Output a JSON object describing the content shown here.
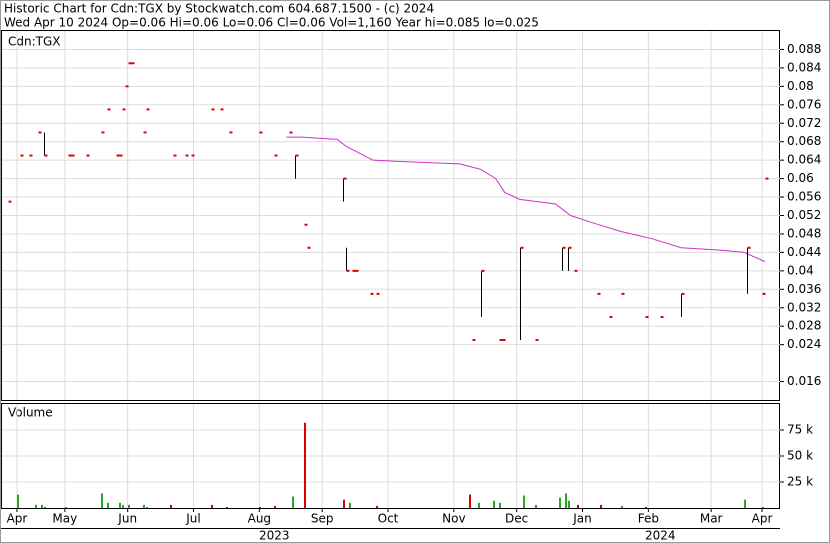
{
  "chart_data": [
    {
      "type": "ohlc",
      "title": "Historic Chart for Cdn:TGX by Stockwatch.com 604.687.1500 - (c) 2024",
      "subtitle": "Wed Apr 10 2024  Op=0.06  Hi=0.06  Lo=0.06  Cl=0.06  Vol=1,160  Year hi=0.085  lo=0.025",
      "label": "Cdn:TGX",
      "xlim": [
        0,
        260
      ],
      "ylim": [
        0.012,
        0.092
      ],
      "yticks": [
        0.016,
        0.024,
        0.028,
        0.032,
        0.036,
        0.04,
        0.044,
        0.048,
        0.052,
        0.056,
        0.06,
        0.064,
        0.068,
        0.072,
        0.076,
        0.08,
        0.084,
        0.088
      ],
      "grid": true,
      "x": [
        2,
        6,
        9,
        12,
        14,
        22,
        23,
        28,
        33,
        35,
        38,
        39,
        40,
        41,
        42,
        43,
        47,
        48,
        57,
        61,
        63,
        70,
        73,
        76,
        86,
        91,
        96,
        98,
        101,
        102,
        114,
        115,
        117,
        118,
        123,
        125,
        157,
        160,
        166,
        167,
        173,
        178,
        187,
        189,
        191,
        199,
        203,
        207,
        215,
        220,
        227,
        249,
        254,
        255
      ],
      "high": [
        0.055,
        0.065,
        0.065,
        0.07,
        0.07,
        0.065,
        0.065,
        0.065,
        0.07,
        0.075,
        0.065,
        0.065,
        0.075,
        0.08,
        0.085,
        0.085,
        0.07,
        0.075,
        0.065,
        0.065,
        0.065,
        0.075,
        0.075,
        0.07,
        0.07,
        0.065,
        0.07,
        0.065,
        0.05,
        0.045,
        0.06,
        0.045,
        0.04,
        0.04,
        0.035,
        0.035,
        0.025,
        0.04,
        0.025,
        0.025,
        0.045,
        0.025,
        0.045,
        0.045,
        0.04,
        0.035,
        0.03,
        0.035,
        0.03,
        0.03,
        0.035,
        0.045,
        0.035,
        0.06
      ],
      "low": [
        0.055,
        0.065,
        0.065,
        0.07,
        0.065,
        0.065,
        0.065,
        0.065,
        0.07,
        0.075,
        0.065,
        0.065,
        0.075,
        0.08,
        0.085,
        0.085,
        0.07,
        0.075,
        0.065,
        0.065,
        0.065,
        0.075,
        0.075,
        0.07,
        0.07,
        0.065,
        0.07,
        0.06,
        0.05,
        0.045,
        0.055,
        0.04,
        0.04,
        0.04,
        0.035,
        0.035,
        0.025,
        0.03,
        0.025,
        0.025,
        0.025,
        0.025,
        0.04,
        0.04,
        0.04,
        0.035,
        0.03,
        0.035,
        0.03,
        0.03,
        0.03,
        0.035,
        0.035,
        0.06
      ],
      "close": [
        0.055,
        0.065,
        0.065,
        0.07,
        0.065,
        0.065,
        0.065,
        0.065,
        0.07,
        0.075,
        0.065,
        0.065,
        0.075,
        0.08,
        0.085,
        0.085,
        0.07,
        0.075,
        0.065,
        0.065,
        0.065,
        0.075,
        0.075,
        0.07,
        0.07,
        0.065,
        0.07,
        0.065,
        0.05,
        0.045,
        0.06,
        0.04,
        0.04,
        0.04,
        0.035,
        0.035,
        0.025,
        0.04,
        0.025,
        0.025,
        0.045,
        0.025,
        0.045,
        0.045,
        0.04,
        0.035,
        0.03,
        0.035,
        0.03,
        0.03,
        0.035,
        0.045,
        0.035,
        0.06
      ],
      "bar_color": "#000000",
      "close_color": "#dd0000",
      "average": {
        "color": "#cc33cc",
        "x": [
          95,
          100,
          112,
          115,
          118,
          124,
          133,
          153,
          160,
          165,
          168,
          173,
          185,
          190,
          197,
          207,
          217,
          227,
          240,
          248,
          255
        ],
        "values": [
          0.069,
          0.069,
          0.0685,
          0.067,
          0.066,
          0.064,
          0.0637,
          0.0632,
          0.062,
          0.06,
          0.057,
          0.0555,
          0.0545,
          0.052,
          0.0505,
          0.0485,
          0.047,
          0.045,
          0.0445,
          0.044,
          0.042
        ]
      }
    },
    {
      "type": "bar",
      "label": "Volume",
      "xlim": [
        0,
        260
      ],
      "ylim": [
        0,
        100000
      ],
      "yticks": [
        {
          "value": 25000,
          "label": "25 k"
        },
        {
          "value": 50000,
          "label": "50 k"
        },
        {
          "value": 75000,
          "label": "75 k"
        }
      ],
      "grid": true,
      "xticks": [
        {
          "value": 5,
          "label": "Apr"
        },
        {
          "value": 21,
          "label": "May"
        },
        {
          "value": 42,
          "label": "Jun"
        },
        {
          "value": 64,
          "label": "Jul"
        },
        {
          "value": 86,
          "label": "Aug"
        },
        {
          "value": 107,
          "label": "Sep"
        },
        {
          "value": 129,
          "label": "Oct"
        },
        {
          "value": 151,
          "label": "Nov"
        },
        {
          "value": 172,
          "label": "Dec"
        },
        {
          "value": 194,
          "label": "Jan"
        },
        {
          "value": 216,
          "label": "Feb"
        },
        {
          "value": 237,
          "label": "Mar"
        },
        {
          "value": 254,
          "label": "Apr"
        }
      ],
      "year_labels": [
        {
          "value": 91,
          "label": "2023"
        },
        {
          "value": 220,
          "label": "2024"
        }
      ],
      "x": [
        5,
        11,
        13,
        14,
        21,
        33,
        35,
        39,
        40,
        42,
        47,
        48,
        56,
        70,
        75,
        86,
        91,
        97,
        101,
        114,
        116,
        125,
        156,
        159,
        164,
        166,
        174,
        178,
        186,
        188,
        189,
        192,
        200,
        207,
        215,
        248,
        254
      ],
      "values": [
        13000,
        3000,
        3000,
        1000,
        1000,
        14000,
        5000,
        5000,
        3000,
        3000,
        3000,
        1000,
        3000,
        3000,
        1000,
        1000,
        2000,
        11000,
        82000,
        8000,
        5000,
        2000,
        13000,
        5000,
        7000,
        5000,
        12000,
        3000,
        10000,
        14000,
        7000,
        3000,
        3000,
        2000,
        1000,
        8000,
        1000
      ],
      "colors": [
        "#22aa22",
        "#22aa22",
        "#22aa22",
        "#22aa22",
        "#22aa22",
        "#22aa22",
        "#22aa22",
        "#22aa22",
        "#22aa22",
        "#22aa22",
        "#22aa22",
        "#22aa22",
        "#dd0000",
        "#dd0000",
        "#dd0000",
        "#dd0000",
        "#dd0000",
        "#22aa22",
        "#dd0000",
        "#dd0000",
        "#22aa22",
        "#dd0000",
        "#dd0000",
        "#22aa22",
        "#22aa22",
        "#22aa22",
        "#22aa22",
        "#22aa22",
        "#22aa22",
        "#22aa22",
        "#22aa22",
        "#dd0000",
        "#dd0000",
        "#22aa22",
        "#dd0000",
        "#22aa22",
        "#22aa22"
      ]
    }
  ]
}
